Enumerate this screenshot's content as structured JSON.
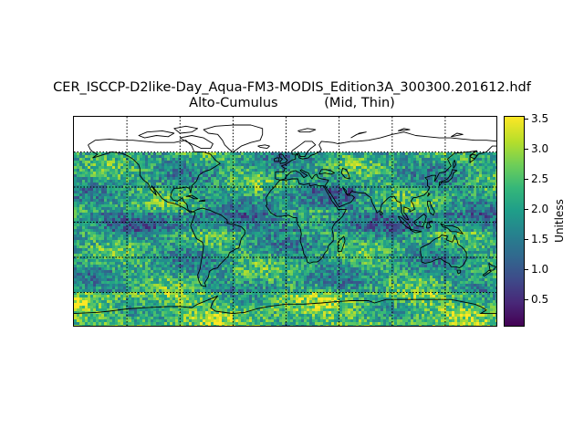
{
  "title": {
    "line1": "CER_ISCCP-D2like-Day_Aqua-FM3-MODIS_Edition3A_300300.201612.hdf",
    "line2": "Alto-Cumulus           (Mid, Thin)"
  },
  "map": {
    "projection": "equirectangular",
    "extent_lon": [
      -180,
      180
    ],
    "extent_lat": [
      -90,
      90
    ],
    "no_data_region": "north of ~60N",
    "gridlines": "dotted, every 45 degrees longitude and 30 degrees latitude",
    "coastlines": true
  },
  "colorbar": {
    "label": "Unitless",
    "colormap": "viridis",
    "range": [
      0.05,
      3.55
    ],
    "ticks": [
      "0.5",
      "1.0",
      "1.5",
      "2.0",
      "2.5",
      "3.0",
      "3.5"
    ]
  }
}
